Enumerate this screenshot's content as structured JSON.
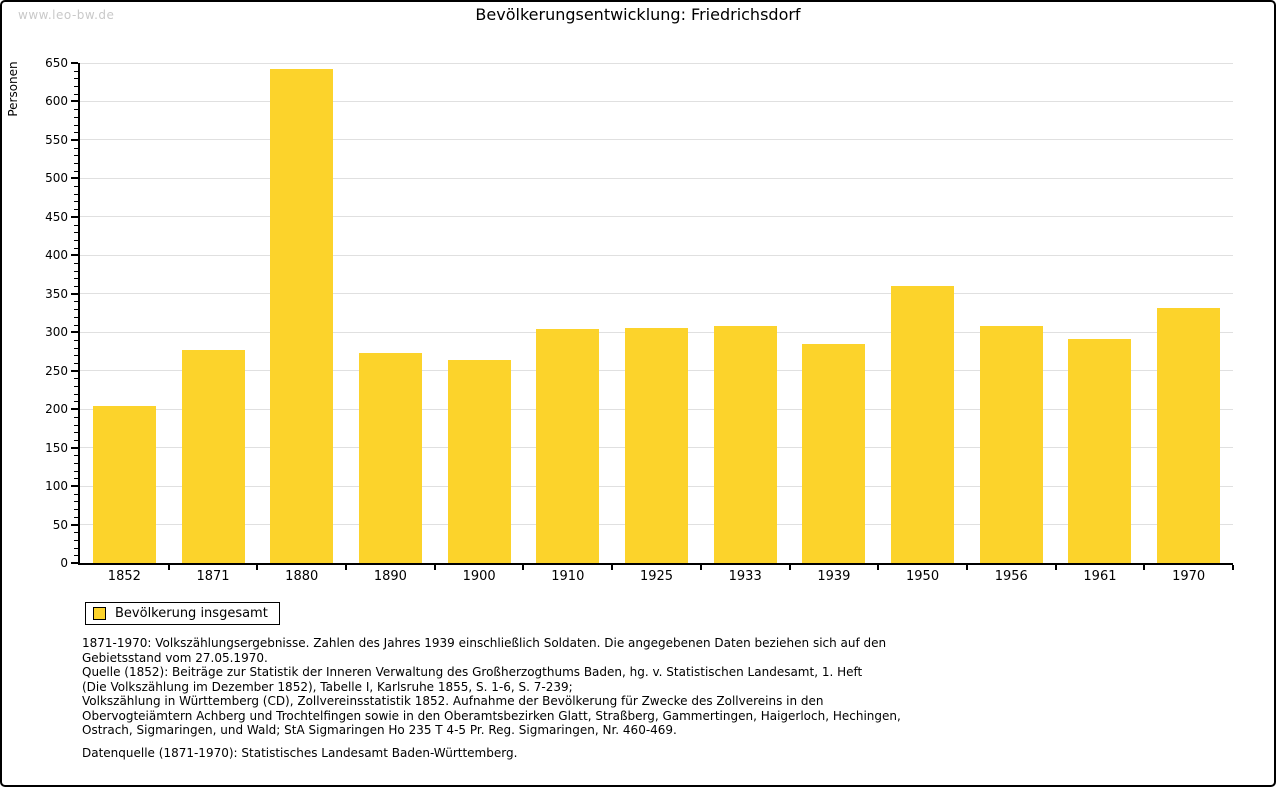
{
  "page": {
    "watermark": "www.leo-bw.de"
  },
  "chart_data": {
    "type": "bar",
    "title": "Bevölkerungsentwicklung: Friedrichsdorf",
    "ylabel": "Personen",
    "xlabel": "",
    "categories": [
      "1852",
      "1871",
      "1880",
      "1890",
      "1900",
      "1910",
      "1925",
      "1933",
      "1939",
      "1950",
      "1956",
      "1961",
      "1970"
    ],
    "values": [
      204,
      277,
      642,
      273,
      264,
      304,
      306,
      308,
      285,
      360,
      308,
      291,
      331
    ],
    "ylim": [
      0,
      650
    ],
    "ytick_step": 50,
    "yminor_step": 10,
    "grid": true,
    "bar_color": "#FCD32B",
    "legend": {
      "label": "Bevölkerung insgesamt",
      "position": "bottom-left"
    }
  },
  "footnotes": {
    "lines": [
      "1871-1970: Volkszählungsergebnisse. Zahlen des Jahres 1939 einschließlich Soldaten. Die angegebenen Daten beziehen sich auf den",
      "Gebietsstand vom 27.05.1970.",
      "Quelle (1852): Beiträge zur Statistik der Inneren Verwaltung des Großherzogthums Baden, hg. v. Statistischen Landesamt, 1. Heft",
      "(Die Volkszählung im Dezember 1852), Tabelle I, Karlsruhe 1855, S. 1-6, S. 7-239;",
      "Volkszählung in Württemberg (CD), Zollvereinsstatistik 1852. Aufnahme der Bevölkerung für Zwecke des Zollvereins in den",
      "Obervogteiämtern Achberg und Trochtelfingen sowie in den Oberamtsbezirken Glatt, Straßberg, Gammertingen, Haigerloch, Hechingen,",
      "Ostrach, Sigmaringen, und Wald; StA Sigmaringen Ho 235 T 4-5 Pr. Reg. Sigmaringen, Nr. 460-469."
    ],
    "datenquelle": "Datenquelle (1871-1970): Statistisches Landesamt Baden-Württemberg."
  },
  "colors": {
    "bar": "#FCD32B",
    "gridline": "#E0E0E0",
    "axis": "#000000",
    "watermark": "#C9C9C9",
    "page_border": "#000000"
  }
}
